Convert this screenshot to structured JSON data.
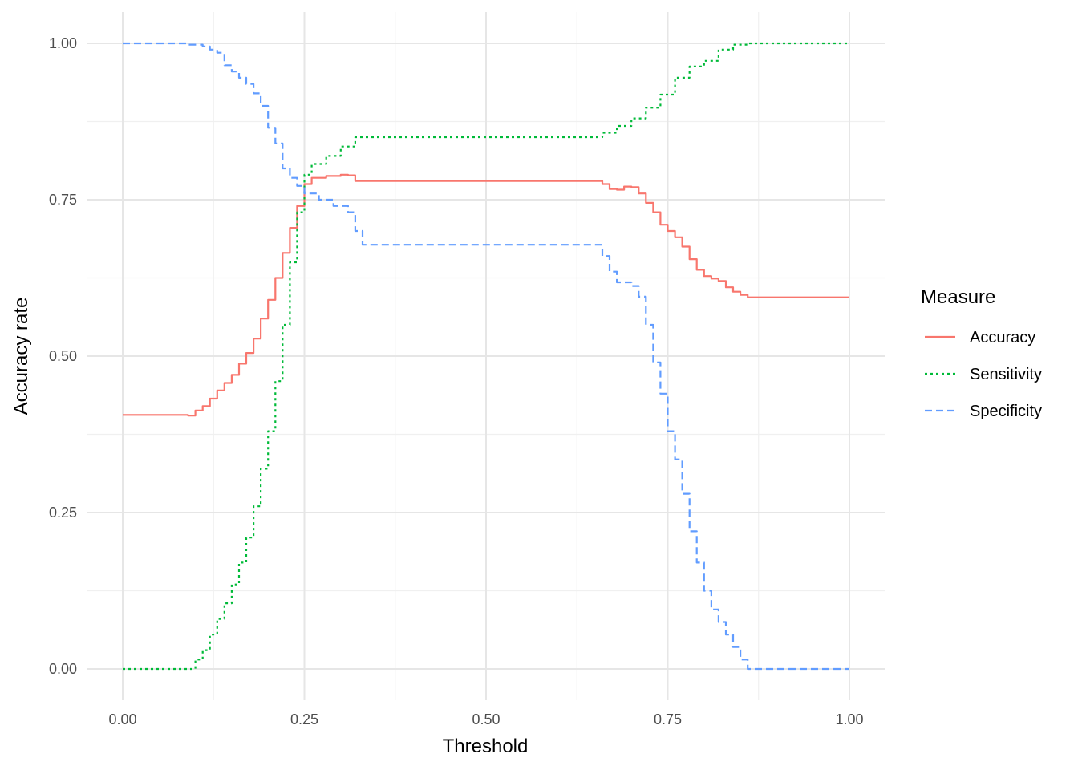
{
  "chart_data": {
    "type": "line",
    "title": "",
    "xlabel": "Threshold",
    "ylabel": "Accuracy rate",
    "xlim": [
      0,
      1
    ],
    "ylim": [
      0,
      1
    ],
    "x_ticks": [
      "0.00",
      "0.25",
      "0.50",
      "0.75",
      "1.00"
    ],
    "y_ticks": [
      "0.00",
      "0.25",
      "0.50",
      "0.75",
      "1.00"
    ],
    "grid": true,
    "legend": {
      "title": "Measure",
      "placement": "right"
    },
    "series": [
      {
        "name": "Accuracy",
        "color": "#F8766D",
        "dash": "solid",
        "points": [
          [
            0.0,
            0.406
          ],
          [
            0.08,
            0.406
          ],
          [
            0.09,
            0.405
          ],
          [
            0.1,
            0.413
          ],
          [
            0.11,
            0.42
          ],
          [
            0.12,
            0.432
          ],
          [
            0.13,
            0.445
          ],
          [
            0.14,
            0.457
          ],
          [
            0.15,
            0.47
          ],
          [
            0.16,
            0.488
          ],
          [
            0.17,
            0.505
          ],
          [
            0.18,
            0.528
          ],
          [
            0.19,
            0.56
          ],
          [
            0.2,
            0.59
          ],
          [
            0.21,
            0.625
          ],
          [
            0.22,
            0.665
          ],
          [
            0.23,
            0.705
          ],
          [
            0.24,
            0.74
          ],
          [
            0.25,
            0.775
          ],
          [
            0.26,
            0.785
          ],
          [
            0.28,
            0.788
          ],
          [
            0.3,
            0.79
          ],
          [
            0.31,
            0.789
          ],
          [
            0.32,
            0.78
          ],
          [
            0.4,
            0.78
          ],
          [
            0.5,
            0.78
          ],
          [
            0.6,
            0.78
          ],
          [
            0.65,
            0.78
          ],
          [
            0.66,
            0.775
          ],
          [
            0.67,
            0.767
          ],
          [
            0.68,
            0.766
          ],
          [
            0.69,
            0.771
          ],
          [
            0.7,
            0.77
          ],
          [
            0.71,
            0.76
          ],
          [
            0.72,
            0.745
          ],
          [
            0.73,
            0.73
          ],
          [
            0.74,
            0.71
          ],
          [
            0.75,
            0.7
          ],
          [
            0.76,
            0.69
          ],
          [
            0.77,
            0.675
          ],
          [
            0.78,
            0.655
          ],
          [
            0.79,
            0.638
          ],
          [
            0.8,
            0.628
          ],
          [
            0.81,
            0.624
          ],
          [
            0.82,
            0.62
          ],
          [
            0.83,
            0.61
          ],
          [
            0.84,
            0.603
          ],
          [
            0.85,
            0.598
          ],
          [
            0.86,
            0.594
          ],
          [
            0.9,
            0.594
          ],
          [
            1.0,
            0.594
          ]
        ]
      },
      {
        "name": "Sensitivity",
        "color": "#00BA38",
        "dash": "dotted",
        "points": [
          [
            0.0,
            0.0
          ],
          [
            0.09,
            0.0
          ],
          [
            0.1,
            0.015
          ],
          [
            0.11,
            0.03
          ],
          [
            0.12,
            0.055
          ],
          [
            0.13,
            0.08
          ],
          [
            0.14,
            0.105
          ],
          [
            0.15,
            0.135
          ],
          [
            0.16,
            0.17
          ],
          [
            0.17,
            0.21
          ],
          [
            0.18,
            0.26
          ],
          [
            0.19,
            0.32
          ],
          [
            0.2,
            0.38
          ],
          [
            0.21,
            0.46
          ],
          [
            0.22,
            0.55
          ],
          [
            0.23,
            0.65
          ],
          [
            0.24,
            0.73
          ],
          [
            0.25,
            0.79
          ],
          [
            0.26,
            0.807
          ],
          [
            0.28,
            0.82
          ],
          [
            0.3,
            0.835
          ],
          [
            0.32,
            0.85
          ],
          [
            0.4,
            0.85
          ],
          [
            0.5,
            0.85
          ],
          [
            0.6,
            0.85
          ],
          [
            0.65,
            0.85
          ],
          [
            0.66,
            0.857
          ],
          [
            0.68,
            0.868
          ],
          [
            0.7,
            0.88
          ],
          [
            0.72,
            0.897
          ],
          [
            0.74,
            0.918
          ],
          [
            0.76,
            0.945
          ],
          [
            0.78,
            0.963
          ],
          [
            0.8,
            0.972
          ],
          [
            0.82,
            0.99
          ],
          [
            0.84,
            0.998
          ],
          [
            0.86,
            1.0
          ],
          [
            0.9,
            1.0
          ],
          [
            1.0,
            1.0
          ]
        ]
      },
      {
        "name": "Specificity",
        "color": "#619CFF",
        "dash": "dashed",
        "points": [
          [
            0.0,
            1.0
          ],
          [
            0.08,
            1.0
          ],
          [
            0.09,
            0.998
          ],
          [
            0.11,
            0.995
          ],
          [
            0.12,
            0.99
          ],
          [
            0.13,
            0.985
          ],
          [
            0.14,
            0.965
          ],
          [
            0.15,
            0.955
          ],
          [
            0.16,
            0.945
          ],
          [
            0.17,
            0.935
          ],
          [
            0.18,
            0.92
          ],
          [
            0.19,
            0.9
          ],
          [
            0.2,
            0.865
          ],
          [
            0.21,
            0.84
          ],
          [
            0.22,
            0.8
          ],
          [
            0.23,
            0.785
          ],
          [
            0.24,
            0.772
          ],
          [
            0.25,
            0.76
          ],
          [
            0.27,
            0.75
          ],
          [
            0.29,
            0.74
          ],
          [
            0.31,
            0.73
          ],
          [
            0.32,
            0.7
          ],
          [
            0.33,
            0.678
          ],
          [
            0.4,
            0.678
          ],
          [
            0.5,
            0.678
          ],
          [
            0.6,
            0.678
          ],
          [
            0.65,
            0.678
          ],
          [
            0.66,
            0.66
          ],
          [
            0.67,
            0.635
          ],
          [
            0.68,
            0.618
          ],
          [
            0.7,
            0.612
          ],
          [
            0.71,
            0.595
          ],
          [
            0.72,
            0.55
          ],
          [
            0.73,
            0.49
          ],
          [
            0.74,
            0.44
          ],
          [
            0.75,
            0.38
          ],
          [
            0.76,
            0.335
          ],
          [
            0.77,
            0.28
          ],
          [
            0.78,
            0.22
          ],
          [
            0.79,
            0.17
          ],
          [
            0.8,
            0.125
          ],
          [
            0.81,
            0.095
          ],
          [
            0.82,
            0.075
          ],
          [
            0.83,
            0.055
          ],
          [
            0.84,
            0.035
          ],
          [
            0.85,
            0.015
          ],
          [
            0.86,
            0.0
          ],
          [
            0.9,
            0.0
          ],
          [
            1.0,
            0.0
          ]
        ]
      }
    ]
  }
}
